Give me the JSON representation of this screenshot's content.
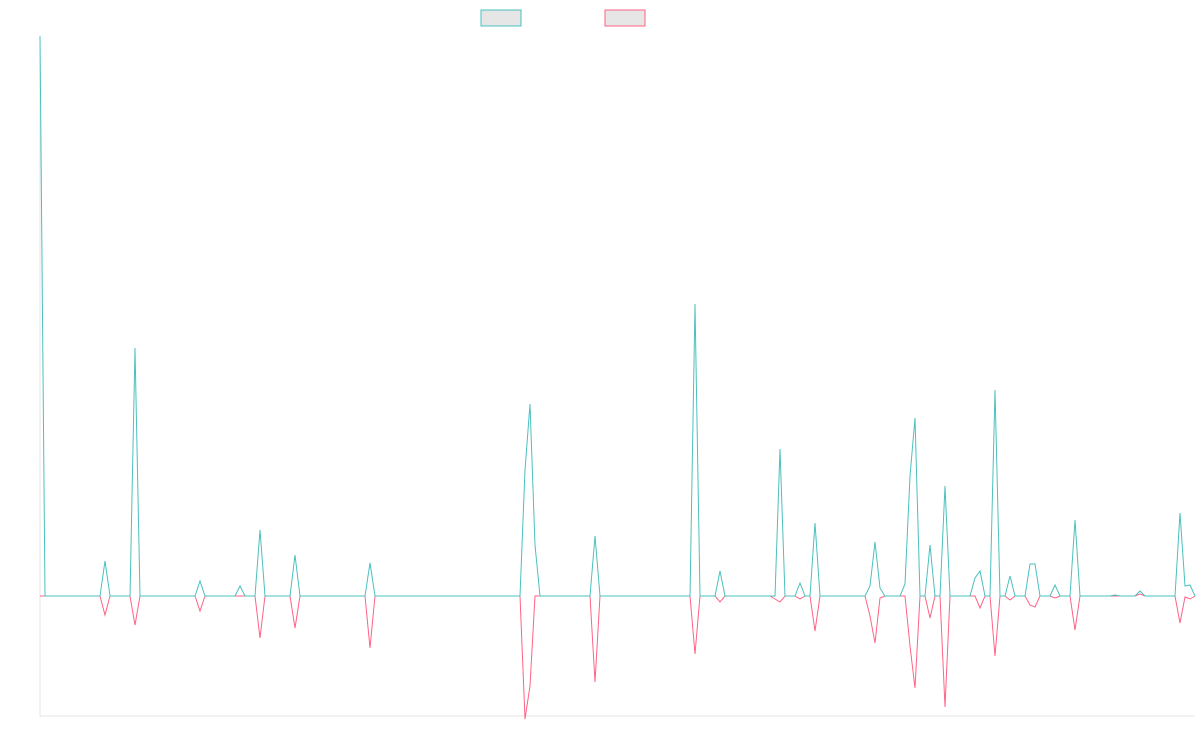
{
  "chart_data": {
    "type": "line",
    "categories": [
      null,
      null,
      null,
      null,
      null,
      null,
      null,
      null,
      null,
      null,
      null,
      null,
      null,
      null,
      null,
      null,
      null,
      null,
      null,
      null,
      null,
      null,
      null,
      null,
      null,
      null,
      null,
      null,
      null,
      null,
      null,
      null,
      null,
      null,
      null,
      null,
      null,
      null,
      null,
      null,
      null,
      null,
      null,
      null,
      null,
      null,
      null,
      null,
      null,
      null,
      null,
      null,
      null,
      null,
      null,
      null,
      null,
      null,
      null,
      null,
      null,
      null,
      null,
      null,
      null,
      null,
      null,
      null,
      null,
      null,
      null,
      null,
      null,
      null,
      null,
      null,
      null,
      null,
      null,
      null,
      null,
      null,
      null,
      null,
      null,
      null,
      null,
      null,
      null,
      null,
      null,
      null,
      null,
      null,
      null,
      null,
      null,
      null,
      null,
      null,
      null,
      null,
      null,
      null,
      null,
      null,
      null,
      null,
      null,
      null,
      null,
      null,
      null,
      null,
      null,
      null,
      null,
      null,
      null,
      null,
      null,
      null,
      null,
      null,
      null,
      null,
      null,
      null,
      null,
      null,
      null,
      null,
      null,
      null,
      null,
      null,
      null,
      null,
      null,
      null,
      null,
      null,
      null,
      null,
      null,
      null,
      null,
      null,
      null,
      null,
      null,
      null,
      null,
      null,
      null,
      null,
      null,
      null,
      null,
      null,
      null,
      null,
      null,
      null,
      null,
      null,
      null,
      null,
      null,
      null,
      null,
      null,
      null,
      null,
      null,
      null,
      null,
      null,
      null,
      null,
      null,
      null,
      null,
      null,
      null,
      null,
      null,
      null,
      null,
      null,
      null,
      null,
      null,
      null,
      null,
      null,
      null,
      null,
      null,
      null,
      null,
      null,
      null,
      null,
      null,
      null,
      null,
      null,
      null,
      null,
      null,
      null,
      null,
      null,
      null,
      null,
      null,
      null,
      null,
      null,
      null,
      null,
      null,
      null,
      null,
      null,
      null,
      null,
      null,
      null,
      null,
      null
    ],
    "series": [
      {
        "color": "#4bc0c0",
        "values": [
          560,
          0,
          0,
          0,
          0,
          0,
          0,
          0,
          0,
          0,
          0,
          0,
          0,
          35,
          0,
          0,
          0,
          0,
          0,
          248,
          0,
          0,
          0,
          0,
          0,
          0,
          0,
          0,
          0,
          0,
          0,
          0,
          15,
          0,
          0,
          0,
          0,
          0,
          0,
          0,
          10,
          0,
          0,
          0,
          66,
          0,
          0,
          0,
          0,
          0,
          0,
          41,
          0,
          0,
          0,
          0,
          0,
          0,
          0,
          0,
          0,
          0,
          0,
          0,
          0,
          0,
          33,
          0,
          0,
          0,
          0,
          0,
          0,
          0,
          0,
          0,
          0,
          0,
          0,
          0,
          0,
          0,
          0,
          0,
          0,
          0,
          0,
          0,
          0,
          0,
          0,
          0,
          0,
          0,
          0,
          0,
          0,
          126,
          192,
          51,
          0,
          0,
          0,
          0,
          0,
          0,
          0,
          0,
          0,
          0,
          0,
          60,
          0,
          0,
          0,
          0,
          0,
          0,
          0,
          0,
          0,
          0,
          0,
          0,
          0,
          0,
          0,
          0,
          0,
          0,
          0,
          292,
          0,
          0,
          0,
          0,
          25,
          0,
          0,
          0,
          0,
          0,
          0,
          0,
          0,
          0,
          0,
          0,
          147,
          0,
          0,
          0,
          13,
          0,
          0,
          73,
          0,
          0,
          0,
          0,
          0,
          0,
          0,
          0,
          0,
          0,
          10,
          54,
          8,
          0,
          0,
          0,
          0,
          12,
          120,
          178,
          0,
          0,
          51,
          0,
          0,
          110,
          0,
          0,
          0,
          0,
          0,
          18,
          25,
          0,
          0,
          206,
          0,
          0,
          20,
          0,
          0,
          0,
          32,
          32,
          0,
          0,
          0,
          11,
          0,
          0,
          0,
          76,
          0,
          0,
          0,
          0,
          0,
          0,
          0,
          1,
          0,
          0,
          0,
          0,
          5,
          0,
          0,
          0,
          0,
          0,
          0,
          0,
          83,
          10,
          11,
          0
        ]
      },
      {
        "color": "#ff6384",
        "values": [
          0,
          0,
          0,
          0,
          0,
          0,
          0,
          0,
          0,
          0,
          0,
          0,
          0,
          -19,
          0,
          0,
          0,
          0,
          0,
          -29,
          0,
          0,
          0,
          0,
          0,
          0,
          0,
          0,
          0,
          0,
          0,
          0,
          -15,
          0,
          0,
          0,
          0,
          0,
          0,
          0,
          0,
          0,
          0,
          0,
          -42,
          0,
          0,
          0,
          0,
          0,
          0,
          -32,
          0,
          0,
          0,
          0,
          0,
          0,
          0,
          0,
          0,
          0,
          0,
          0,
          0,
          0,
          -52,
          0,
          0,
          0,
          0,
          0,
          0,
          0,
          0,
          0,
          0,
          0,
          0,
          0,
          0,
          0,
          0,
          0,
          0,
          0,
          0,
          0,
          0,
          0,
          0,
          0,
          0,
          0,
          0,
          0,
          0,
          -123,
          -90,
          0,
          0,
          0,
          0,
          0,
          0,
          0,
          0,
          0,
          0,
          0,
          0,
          -86,
          0,
          0,
          0,
          0,
          0,
          0,
          0,
          0,
          0,
          0,
          0,
          0,
          0,
          0,
          0,
          0,
          0,
          0,
          0,
          -58,
          0,
          0,
          0,
          0,
          -6,
          0,
          0,
          0,
          0,
          0,
          0,
          0,
          0,
          0,
          0,
          -3,
          -6,
          0,
          0,
          0,
          -3,
          0,
          0,
          -35,
          0,
          0,
          0,
          0,
          0,
          0,
          0,
          0,
          0,
          0,
          -20,
          -47,
          -2,
          0,
          0,
          0,
          0,
          0,
          -50,
          -92,
          0,
          0,
          -22,
          0,
          0,
          -111,
          0,
          0,
          0,
          0,
          0,
          0,
          -12,
          0,
          0,
          -60,
          0,
          0,
          -4,
          0,
          0,
          0,
          -9,
          -11,
          0,
          0,
          0,
          -2,
          0,
          0,
          0,
          -34,
          0,
          0,
          0,
          0,
          0,
          0,
          0,
          0,
          0,
          0,
          0,
          0,
          2,
          0,
          0,
          0,
          0,
          0,
          0,
          0,
          -27,
          -1,
          -3,
          0
        ]
      }
    ],
    "ylim": [
      -120,
      560
    ]
  }
}
